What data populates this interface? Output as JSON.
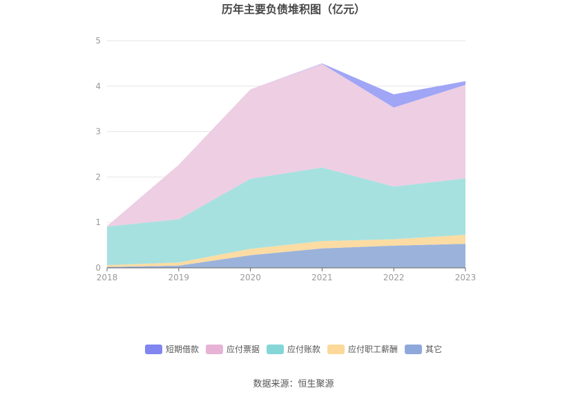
{
  "chart_data": {
    "type": "area",
    "title": "历年主要负债堆积图（亿元）",
    "categories": [
      "2018",
      "2019",
      "2020",
      "2021",
      "2022",
      "2023"
    ],
    "ylim": [
      0,
      5
    ],
    "yticks": [
      0,
      1,
      2,
      3,
      4,
      5
    ],
    "grid": true,
    "legend_position": "bottom",
    "stacked": true,
    "series": [
      {
        "name": "其它",
        "color": "#9bb3db",
        "values": [
          0.02,
          0.05,
          0.28,
          0.43,
          0.49,
          0.53
        ]
      },
      {
        "name": "应付职工薪酬",
        "color": "#fcdca3",
        "values": [
          0.04,
          0.07,
          0.14,
          0.16,
          0.14,
          0.2
        ]
      },
      {
        "name": "应付账款",
        "color": "#a6e1e0",
        "values": [
          0.85,
          0.95,
          1.54,
          1.62,
          1.16,
          1.24
        ]
      },
      {
        "name": "应付票据",
        "color": "#edcee3",
        "values": [
          0.01,
          1.2,
          1.97,
          2.28,
          1.74,
          2.06
        ]
      },
      {
        "name": "短期借款",
        "color": "#a0a5f5",
        "values": [
          0,
          0,
          0,
          0.01,
          0.29,
          0.08
        ]
      }
    ],
    "legend_order": [
      "短期借款",
      "应付票据",
      "应付账款",
      "应付职工薪酬",
      "其它"
    ],
    "legend_colors": {
      "短期借款": "#8085f0",
      "应付票据": "#e6b3d6",
      "应付账款": "#85d6d6",
      "应付职工薪酬": "#fcd89a",
      "其它": "#8fa8dc"
    }
  },
  "footer": {
    "source": "数据来源：恒生聚源"
  }
}
